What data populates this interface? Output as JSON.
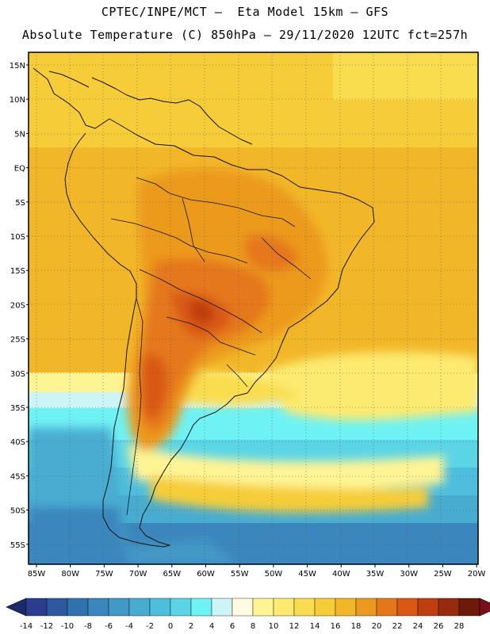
{
  "header": {
    "line1": "CPTEC/INPE/MCT –  Eta Model 15km – GFS",
    "line2": "Absolute Temperature (C) 850hPa – 29/11/2020 12UTC fct=257h"
  },
  "map": {
    "lat_labels": [
      "15N",
      "10N",
      "5N",
      "EQ",
      "5S",
      "10S",
      "15S",
      "20S",
      "25S",
      "30S",
      "35S",
      "40S",
      "45S",
      "50S",
      "55S"
    ],
    "lon_labels": [
      "85W",
      "80W",
      "75W",
      "70W",
      "65W",
      "60W",
      "55W",
      "50W",
      "45W",
      "40W",
      "35W",
      "30W",
      "25W",
      "20W"
    ]
  },
  "colorbar": {
    "labels": [
      "-14",
      "-12",
      "-10",
      "-8",
      "-6",
      "-4",
      "-2",
      "0",
      "2",
      "4",
      "6",
      "8",
      "10",
      "12",
      "14",
      "16",
      "18",
      "20",
      "22",
      "24",
      "26",
      "28"
    ],
    "colors": [
      "#2c3d8f",
      "#2d5a9e",
      "#2f72ae",
      "#3b86bd",
      "#4399c6",
      "#48acd1",
      "#4fbedc",
      "#5bd5e6",
      "#6ff2f4",
      "#cdf5f8",
      "#fffae0",
      "#fff494",
      "#fdea6f",
      "#f9dd4f",
      "#f6cd39",
      "#f2b729",
      "#ec9a1f",
      "#e5771a",
      "#d85814",
      "#bf3e10",
      "#962b0d",
      "#6e1a0a"
    ]
  },
  "legend_colors": {
    "low_arrow": "#1b2a6b",
    "high_arrow": "#7a0e1a"
  }
}
